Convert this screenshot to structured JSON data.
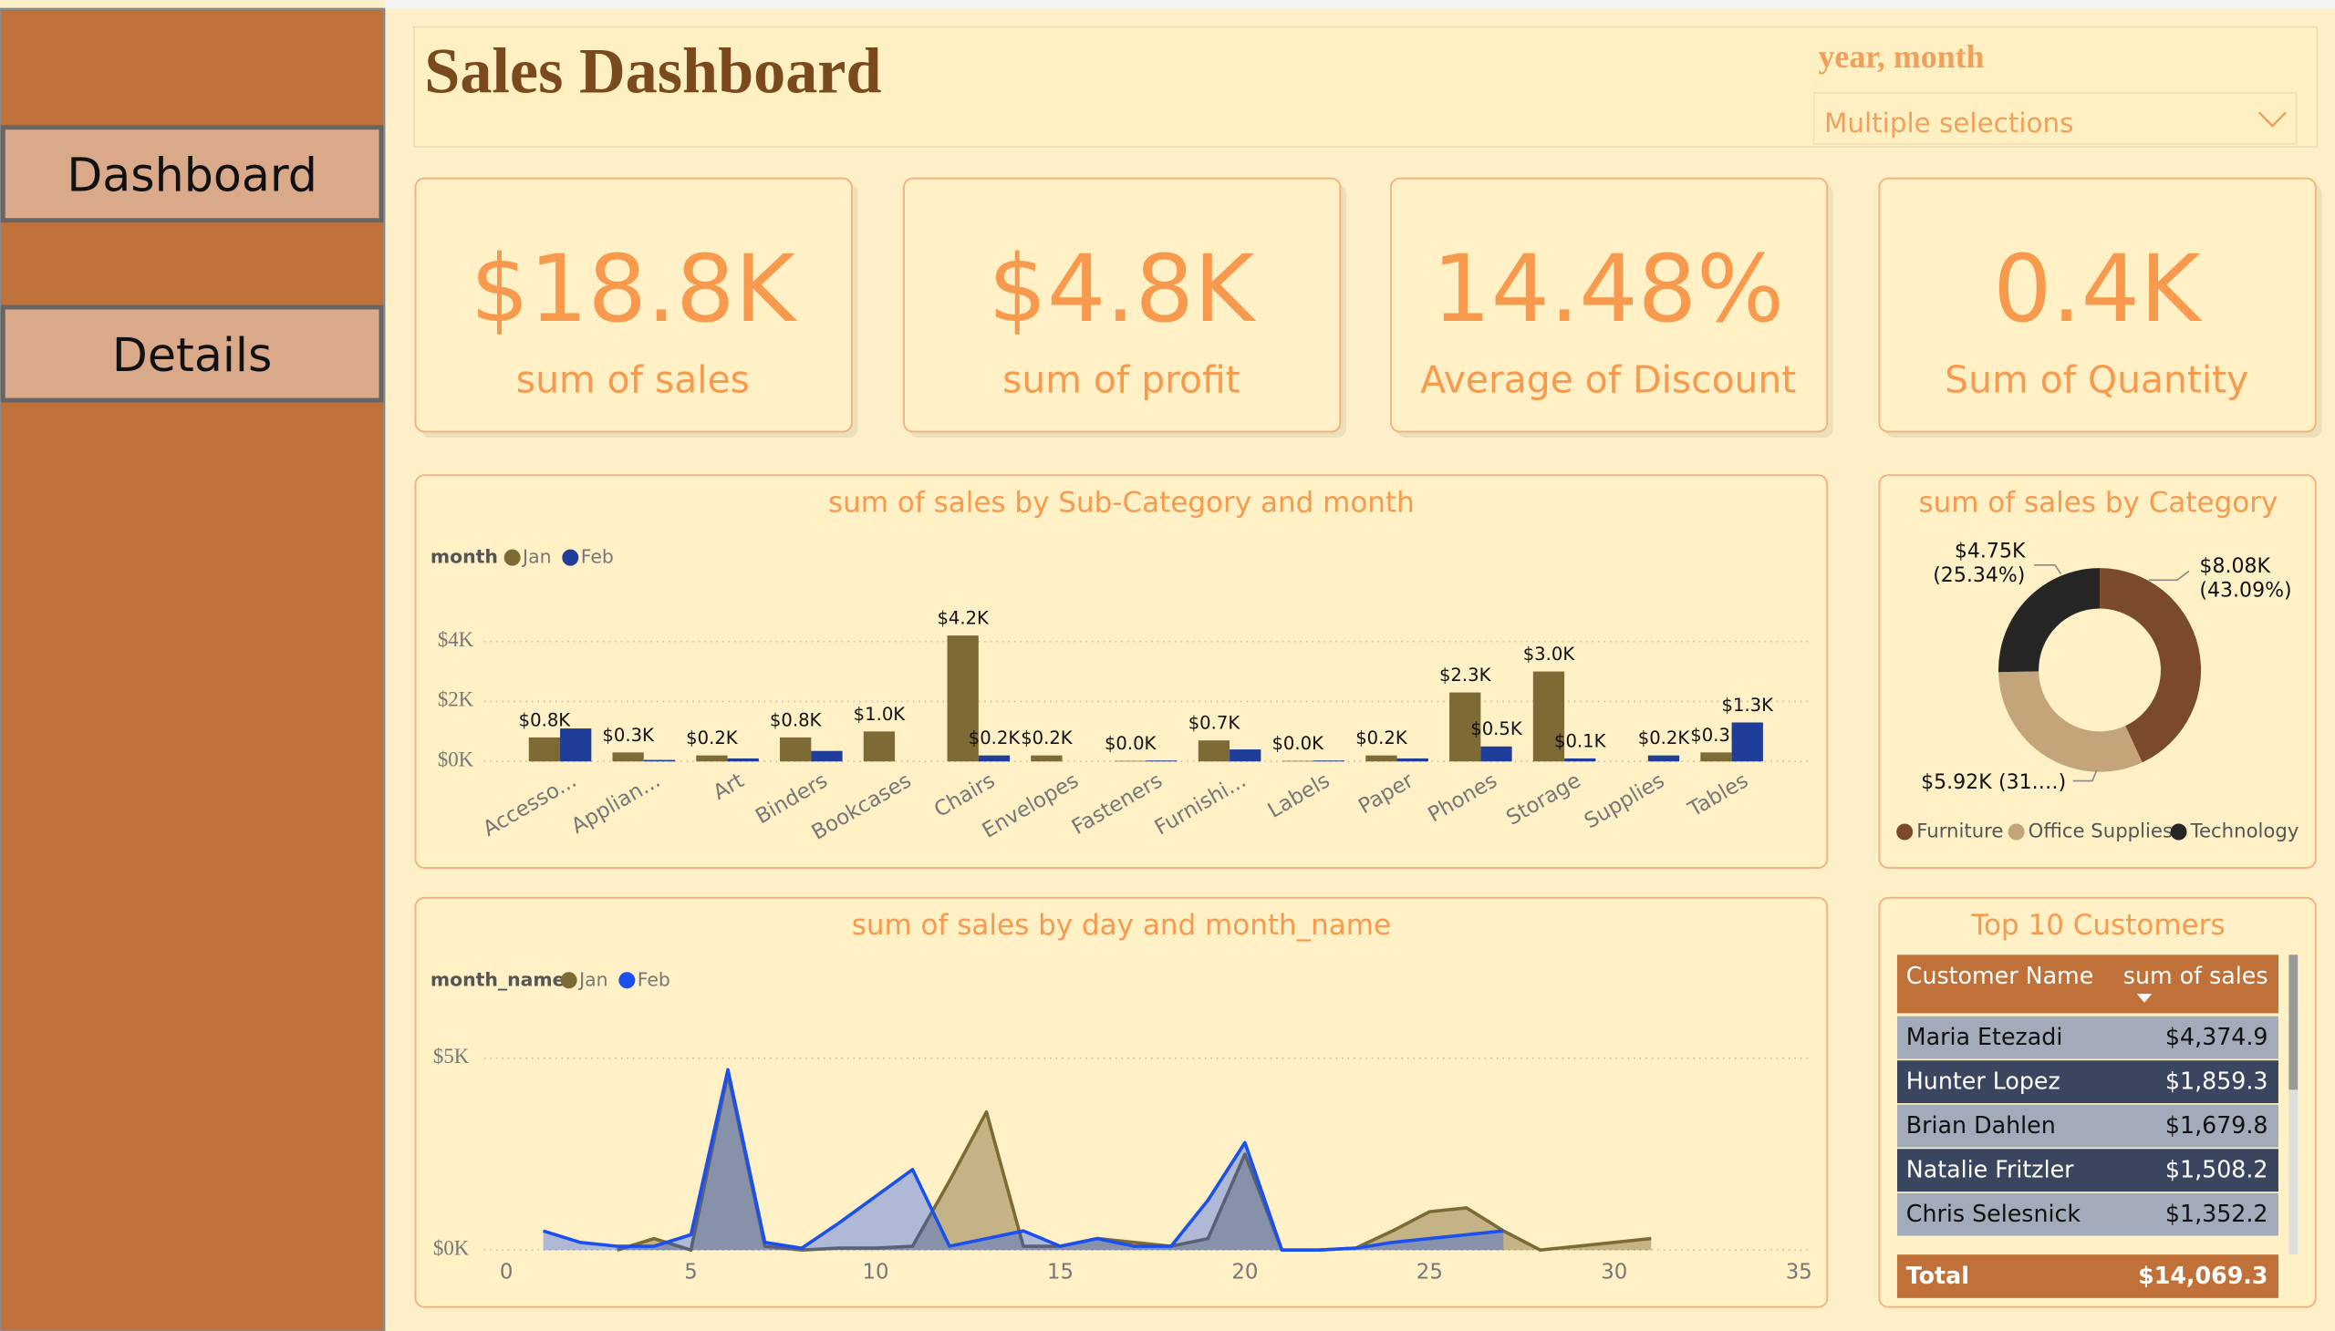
{
  "nav": {
    "items": [
      "Dashboard",
      "Details"
    ]
  },
  "header": {
    "title": "Sales Dashboard",
    "slicer": {
      "label": "year, month",
      "value": "Multiple selections"
    }
  },
  "kpis": [
    {
      "value": "$18.8K",
      "label": "sum of sales"
    },
    {
      "value": "$4.8K",
      "label": "sum of profit"
    },
    {
      "value": "14.48%",
      "label": "Average of Discount"
    },
    {
      "value": "0.4K",
      "label": "Sum of Quantity"
    }
  ],
  "chart_data": [
    {
      "type": "bar",
      "title": "sum of sales by Sub-Category and month",
      "legend_title": "month",
      "categories": [
        "Accesso...",
        "Applian...",
        "Art",
        "Binders",
        "Bookcases",
        "Chairs",
        "Envelopes",
        "Fasteners",
        "Furnishi...",
        "Labels",
        "Paper",
        "Phones",
        "Storage",
        "Supplies",
        "Tables"
      ],
      "series": [
        {
          "name": "Jan",
          "color": "#7d6a35",
          "values": [
            800,
            300,
            200,
            800,
            1000,
            4200,
            200,
            20,
            700,
            20,
            200,
            2300,
            3000,
            null,
            300
          ],
          "value_labels": [
            "$0.8K",
            "$0.3K",
            "$0.2K",
            "$0.8K",
            "$1.0K",
            "$4.2K",
            "$0.2K",
            "$0.0K",
            "$0.7K",
            "$0.0K",
            "$0.2K",
            "$2.3K",
            "$3.0K",
            null,
            "$0.3K"
          ]
        },
        {
          "name": "Feb",
          "color": "#1f3e99",
          "values": [
            1100,
            50,
            100,
            350,
            null,
            200,
            null,
            30,
            400,
            30,
            100,
            500,
            100,
            200,
            1300
          ],
          "value_labels": [
            null,
            null,
            null,
            null,
            null,
            "$0.2K",
            null,
            null,
            null,
            null,
            null,
            "$0.5K",
            "$0.1K",
            "$0.2K",
            "$1.3K"
          ]
        }
      ],
      "ylim": [
        0,
        5000
      ],
      "yticks": [
        {
          "value": 0,
          "label": "$0K"
        },
        {
          "value": 2000,
          "label": "$2K"
        },
        {
          "value": 4000,
          "label": "$4K"
        }
      ],
      "grid": true
    },
    {
      "type": "donut",
      "title": "sum of sales by Category",
      "categories": [
        "Furniture",
        "Office Supplies",
        "Technology"
      ],
      "values": [
        8080,
        5920,
        4750
      ],
      "value_labels": [
        "$8.08K",
        "$5.92K",
        "$4.75K"
      ],
      "percent_labels": [
        "(43.09%)",
        "(31.…)",
        "(25.34%)"
      ],
      "colors": [
        "#7b4a2a",
        "#c4a57a",
        "#262626"
      ]
    },
    {
      "type": "area",
      "title": "sum of sales by day and month_name",
      "legend_title": "month_name",
      "x": [
        1,
        2,
        3,
        4,
        5,
        6,
        7,
        8,
        9,
        10,
        11,
        12,
        13,
        14,
        15,
        16,
        17,
        18,
        19,
        20,
        21,
        22,
        23,
        24,
        25,
        26,
        27,
        28,
        29,
        30,
        31
      ],
      "series": [
        {
          "name": "Jan",
          "color": "#7d6a35",
          "values": [
            null,
            null,
            0,
            300,
            0,
            4600,
            100,
            0,
            50,
            50,
            100,
            1800,
            3600,
            100,
            100,
            300,
            200,
            100,
            300,
            2500,
            0,
            0,
            50,
            500,
            1000,
            1100,
            500,
            0,
            100,
            200,
            300
          ]
        },
        {
          "name": "Feb",
          "color": "#1a4ff0",
          "values": [
            500,
            200,
            100,
            100,
            400,
            4700,
            200,
            50,
            700,
            1400,
            2100,
            100,
            300,
            500,
            100,
            300,
            100,
            100,
            1300,
            2800,
            0,
            0,
            50,
            200,
            300,
            400,
            500,
            null,
            null,
            null,
            null
          ]
        }
      ],
      "xlim": [
        0,
        35
      ],
      "xticks": [
        0,
        5,
        10,
        15,
        20,
        25,
        30,
        35
      ],
      "ylim": [
        0,
        5000
      ],
      "yticks": [
        {
          "value": 0,
          "label": "$0K"
        },
        {
          "value": 5000,
          "label": "$5K"
        }
      ],
      "grid": true
    }
  ],
  "table": {
    "title": "Top 10 Customers",
    "columns": [
      "Customer Name",
      "sum of sales"
    ],
    "rows": [
      [
        "Maria Etezadi",
        "$4,374.9"
      ],
      [
        "Hunter Lopez",
        "$1,859.3"
      ],
      [
        "Brian Dahlen",
        "$1,679.8"
      ],
      [
        "Natalie Fritzler",
        "$1,508.2"
      ],
      [
        "Chris Selesnick",
        "$1,352.2"
      ]
    ],
    "total": [
      "Total",
      "$14,069.3"
    ]
  }
}
